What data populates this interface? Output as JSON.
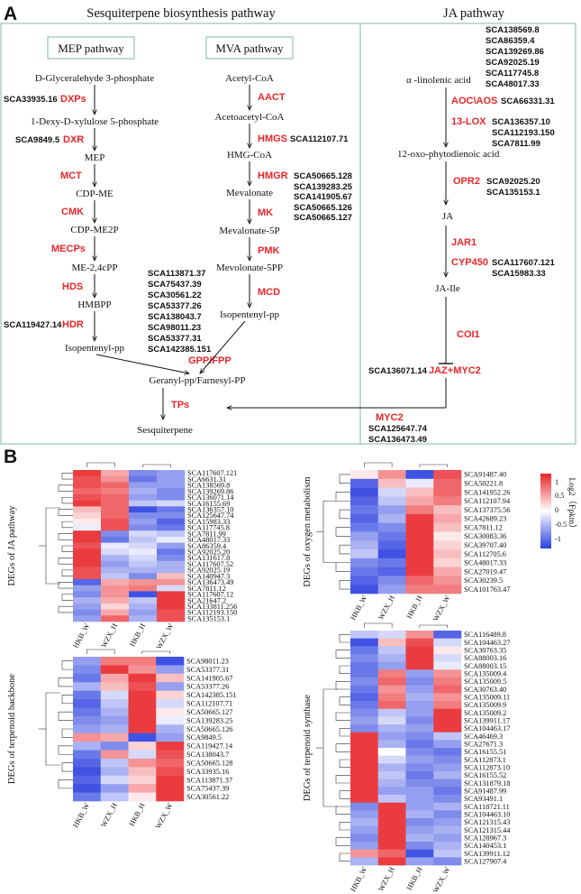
{
  "panel_a": {
    "label": "A",
    "sesq_title": "Sesquiterpene biosynthesis pathway",
    "ja_title": "JA pathway",
    "mep_box": "MEP pathway",
    "mva_box": "MVA pathway",
    "mep": {
      "metabolites": [
        "D-Glyceralehyde 3-phosphate",
        "1-Dexy-D-xylulose 5-phosphate",
        "MEP",
        "CDP-ME",
        "CDP-ME2P",
        "ME-2,4cPP",
        "HMBPP",
        "Isopentenyl-pp"
      ],
      "enzymes": [
        "DXPs",
        "DXR",
        "MCT",
        "CMK",
        "MECPs",
        "HDS",
        "HDR"
      ],
      "dxps_gene": "SCA33935.16",
      "dxr_gene": "SCA9849.5",
      "hdr_gene": "SCA119427.14"
    },
    "mva": {
      "metabolites": [
        "Acetyl-CoA",
        "Acetoacetyl-CoA",
        "HMG-CoA",
        "Mevalonate",
        "Mevalonate-5P",
        "Mevolonate-5PP",
        "Isopentenyl-pp"
      ],
      "enzymes": [
        "AACT",
        "HMGS",
        "HMGR",
        "MK",
        "PMK",
        "MCD"
      ],
      "hmgs_gene": "SCA112107.71",
      "hmgr_genes": [
        "SCA50665.128",
        "SCA139283.25",
        "SCA141905.67",
        "SCA50665.126",
        "SCA50665.127"
      ]
    },
    "gpp_genes": [
      "SCA113871.37",
      "SCA75437.39",
      "SCA30561.22",
      "SCA53377.26",
      "SCA138043.7",
      "SCA98011.23",
      "SCA53377.31",
      "SCA142385.151"
    ],
    "gpp_enzyme": "GPP/FPP",
    "geranyl": "Geranyl-pp/Farnesyl-PP",
    "tps": "TPs",
    "sesquiterpene": "Sesquiterpene",
    "ja": {
      "top_genes": [
        "SCA138569.8",
        "SCA86359.4",
        "SCA139269.86",
        "SCA92025.19",
        "SCA117745.8",
        "SCA48017.33"
      ],
      "linolenic": "α -linolenic acid",
      "aoc_enzyme": "AOC\\AOS",
      "aoc_gene": "SCA66331.31",
      "lox_enzyme": "13-LOX",
      "lox_genes": [
        "SCA136357.10",
        "SCA112193.150",
        "SCA7811.99"
      ],
      "opda": "12-oxo-phytodienoic acid",
      "opr2_enzyme": "OPR2",
      "opr2_genes": [
        "SCA92025.20",
        "SCA135153.1"
      ],
      "ja_label": "JA",
      "jar1_enzyme": "JAR1",
      "cyp_enzyme": "CYP450",
      "cyp_genes": [
        "SCA117607.121",
        "SCA15983.33"
      ],
      "ja_ile": "JA-Ile",
      "coi1": "COI1",
      "jaz_gene": "SCA136071.14",
      "jaz_enzyme": "JAZ+MYC2",
      "myc2": "MYC2",
      "myc2_genes": [
        "SCA125647.74",
        "SCA136473.49"
      ]
    }
  },
  "panel_b": {
    "label": "B",
    "columns": [
      "HKB_W",
      "WZX_H",
      "HKB_H",
      "WZX_W"
    ],
    "legend": {
      "title": "Log2（Fpkm）",
      "ticks": [
        "1",
        "0.5",
        "0",
        "-0.5",
        "-1"
      ],
      "colors": {
        "high": "#e8262a",
        "mid": "#ffffff",
        "low": "#2a3fe0"
      }
    },
    "heatmaps": [
      {
        "title": "DEGs of JA pathway",
        "columns": [
          "HKB_W",
          "WZX_H",
          "HKB_H",
          "WZX_W"
        ],
        "rows": [
          "SCA117607.121",
          "SCA6631.31",
          "SCA138569.8",
          "SCA139269.86",
          "SCA136071.14",
          "SCA16155.69",
          "SCA136357.10",
          "SCA125647.74",
          "SCA15983.33",
          "SCA117745.8",
          "SCA7811.99",
          "SCA48017.33",
          "SCA86359.4",
          "SCA92025.20",
          "SCA131617.8",
          "SCA117607.52",
          "SCA92025.19",
          "SCA140947.3",
          "SCA136473.49",
          "SCA7811.12",
          "SCA117607.12",
          "SCA21647.2",
          "SCA133811.256",
          "SCA112193.150",
          "SCA135153.1"
        ],
        "values": [
          [
            0.9,
            0.4,
            -0.6,
            -0.5
          ],
          [
            0.8,
            0.5,
            -0.7,
            -0.5
          ],
          [
            0.8,
            0.7,
            -0.5,
            -0.5
          ],
          [
            0.7,
            0.6,
            -0.4,
            -0.6
          ],
          [
            0.8,
            0.7,
            -0.5,
            -0.6
          ],
          [
            0.9,
            0.7,
            -0.3,
            -0.2
          ],
          [
            0.3,
            0.7,
            -0.9,
            -0.7
          ],
          [
            0.2,
            0.7,
            -0.6,
            -0.6
          ],
          [
            0.1,
            0.8,
            -0.5,
            -0.8
          ],
          [
            -0.1,
            0.8,
            -0.6,
            -0.7
          ],
          [
            0.9,
            -0.6,
            -0.2,
            -0.3
          ],
          [
            0.9,
            -0.7,
            -0.3,
            -0.1
          ],
          [
            0.8,
            -0.1,
            -0.2,
            -0.5
          ],
          [
            0.9,
            -0.2,
            -0.1,
            -0.7
          ],
          [
            0.9,
            -0.4,
            -0.2,
            -0.6
          ],
          [
            0.9,
            -0.5,
            -0.3,
            -0.4
          ],
          [
            0.8,
            -0.4,
            -0.4,
            -0.4
          ],
          [
            0.8,
            -0.3,
            -0.6,
            0.3
          ],
          [
            -0.8,
            0.4,
            0.5,
            0.5
          ],
          [
            -0.5,
            0.5,
            0.6,
            -0.2
          ],
          [
            -0.6,
            0.5,
            -0.9,
            0.9
          ],
          [
            -0.4,
            0.4,
            -0.3,
            0.9
          ],
          [
            -0.5,
            0.2,
            -0.4,
            0.9
          ],
          [
            -0.6,
            0.4,
            -0.5,
            0.8
          ],
          [
            -0.5,
            0.7,
            -0.4,
            0.8
          ]
        ]
      },
      {
        "title": "DEGs of oxygen metabolism",
        "columns": [
          "HKB_W",
          "WZX_H",
          "HKB_H",
          "WZX_W"
        ],
        "rows": [
          "SCA91487.40",
          "SCA50221.8",
          "SCA141952.26",
          "SCA112107.94",
          "SCA137375.56",
          "SCA42689.23",
          "SCA7811.12",
          "SCA30083.36",
          "SCA39707.40",
          "SCA112705.6",
          "SCA48017.33",
          "SCA27019.47",
          "SCA30239.5",
          "SCA101763.47"
        ],
        "values": [
          [
            0.1,
            0.5,
            -0.9,
            0.8
          ],
          [
            -0.8,
            0.3,
            -0.1,
            0.7
          ],
          [
            -0.9,
            -0.2,
            0.3,
            0.7
          ],
          [
            -0.8,
            -0.3,
            0.4,
            0.6
          ],
          [
            -0.7,
            -0.5,
            0.6,
            0.3
          ],
          [
            -0.8,
            -0.4,
            0.9,
            0.4
          ],
          [
            -0.7,
            -0.6,
            0.9,
            0.3
          ],
          [
            -0.5,
            -0.7,
            0.9,
            0.1
          ],
          [
            -0.4,
            -0.8,
            0.9,
            0.2
          ],
          [
            -0.3,
            -0.9,
            0.9,
            0.3
          ],
          [
            -0.6,
            -0.7,
            0.9,
            0.2
          ],
          [
            -0.7,
            -0.8,
            0.9,
            0.4
          ],
          [
            -0.8,
            -0.6,
            0.7,
            0.5
          ],
          [
            -0.9,
            -0.5,
            0.6,
            0.6
          ]
        ]
      },
      {
        "title": "DEGs of terpenoid backbone",
        "columns": [
          "HKB_W",
          "WZX_H",
          "HKB_H",
          "WZX_W"
        ],
        "rows": [
          "SCA98011.23",
          "SCA53377.31",
          "SCA141905.67",
          "SCA53377.26",
          "SCA142385.151",
          "SCA112107.71",
          "SCA50665.127",
          "SCA139283.25",
          "SCA50665.126",
          "SCA9849.5",
          "SCA119427.14",
          "SCA138043.7",
          "SCA50665.128",
          "SCA33935.16",
          "SCA113871.37",
          "SCA75437.39",
          "SCA30561.22"
        ],
        "values": [
          [
            -0.5,
            0.6,
            0.6,
            -0.9
          ],
          [
            -0.6,
            0.9,
            0.5,
            -0.5
          ],
          [
            -0.7,
            0.4,
            0.9,
            0.3
          ],
          [
            -0.4,
            0.3,
            0.8,
            -0.5
          ],
          [
            -0.7,
            -0.2,
            0.9,
            0.2
          ],
          [
            -0.8,
            -0.3,
            0.9,
            -0.2
          ],
          [
            -0.7,
            -0.4,
            0.9,
            0.1
          ],
          [
            -0.6,
            -0.5,
            0.9,
            -0.1
          ],
          [
            -0.5,
            -0.4,
            0.9,
            -0.4
          ],
          [
            0.5,
            0.4,
            -0.9,
            -0.5
          ],
          [
            -0.4,
            -0.6,
            0.2,
            0.9
          ],
          [
            -0.7,
            0.5,
            -0.2,
            0.8
          ],
          [
            -0.8,
            -0.3,
            0.5,
            0.7
          ],
          [
            -0.9,
            -0.4,
            0.3,
            0.8
          ],
          [
            -0.8,
            -0.2,
            0.2,
            0.9
          ],
          [
            -0.9,
            -0.5,
            0.4,
            0.9
          ],
          [
            -0.7,
            -0.3,
            0.1,
            0.9
          ]
        ]
      },
      {
        "title": "DEGs of terpenoid synthase",
        "columns": [
          "HKB_W",
          "WZX_H",
          "HKB_H",
          "WZX_W"
        ],
        "rows": [
          "SCA116489.8",
          "SCA104463.27",
          "SCA30763.35",
          "SCA88003.16",
          "SCA88003.15",
          "SCA135009.4",
          "SCA135009.5",
          "SCA30763.40",
          "SCA135009.11",
          "SCA135009.9",
          "SCA135009.2",
          "SCA139911.17",
          "SCA104463.17",
          "SCA46469.3",
          "SCA27671.3",
          "SCA16155.51",
          "SCA112873.1",
          "SCA112873.10",
          "SCA16155.52",
          "SCA131879.18",
          "SCA91487.99",
          "SCA93491.1",
          "SCA118721.11",
          "SCA104463.10",
          "SCA121315.43",
          "SCA121315.44",
          "SCA128967.3",
          "SCA140453.1",
          "SCA139911.12",
          "SCA127907.4"
        ],
        "values": [
          [
            -0.3,
            -0.2,
            0.5,
            -0.8
          ],
          [
            -0.9,
            0.3,
            0.8,
            -0.2
          ],
          [
            -0.7,
            -0.3,
            0.9,
            0.1
          ],
          [
            -0.6,
            -0.4,
            0.9,
            -0.2
          ],
          [
            -0.7,
            -0.5,
            0.9,
            -0.1
          ],
          [
            -0.7,
            0.6,
            -0.5,
            0.5
          ],
          [
            -0.6,
            0.7,
            -0.6,
            0.6
          ],
          [
            -0.7,
            0.5,
            -0.5,
            0.7
          ],
          [
            -0.8,
            0.6,
            -0.4,
            0.5
          ],
          [
            -0.7,
            0.7,
            -0.5,
            0.6
          ],
          [
            -0.6,
            -0.3,
            -0.5,
            0.9
          ],
          [
            -0.5,
            -0.2,
            -0.6,
            0.9
          ],
          [
            -0.6,
            -0.4,
            -0.5,
            0.9
          ],
          [
            0.9,
            -0.5,
            -0.6,
            -0.3
          ],
          [
            0.9,
            -0.4,
            -0.7,
            -0.5
          ],
          [
            0.9,
            0.0,
            -0.6,
            -0.7
          ],
          [
            0.9,
            -0.2,
            -0.5,
            -0.6
          ],
          [
            0.9,
            -0.4,
            -0.6,
            -0.5
          ],
          [
            0.9,
            -0.3,
            -0.7,
            -0.4
          ],
          [
            0.9,
            -0.4,
            -0.6,
            -0.6
          ],
          [
            0.9,
            -0.5,
            -0.5,
            -0.7
          ],
          [
            0.9,
            -0.3,
            -0.5,
            -0.6
          ],
          [
            -0.6,
            0.9,
            -0.5,
            -0.4
          ],
          [
            -0.5,
            0.9,
            -0.4,
            -0.6
          ],
          [
            -0.4,
            0.9,
            -0.6,
            -0.5
          ],
          [
            -0.5,
            0.9,
            -0.5,
            -0.4
          ],
          [
            -0.6,
            0.9,
            -0.4,
            -0.5
          ],
          [
            -0.5,
            0.9,
            -0.6,
            -0.4
          ],
          [
            0.5,
            0.7,
            -0.9,
            -0.3
          ],
          [
            -0.4,
            0.9,
            -0.5,
            -0.6
          ]
        ]
      }
    ]
  }
}
